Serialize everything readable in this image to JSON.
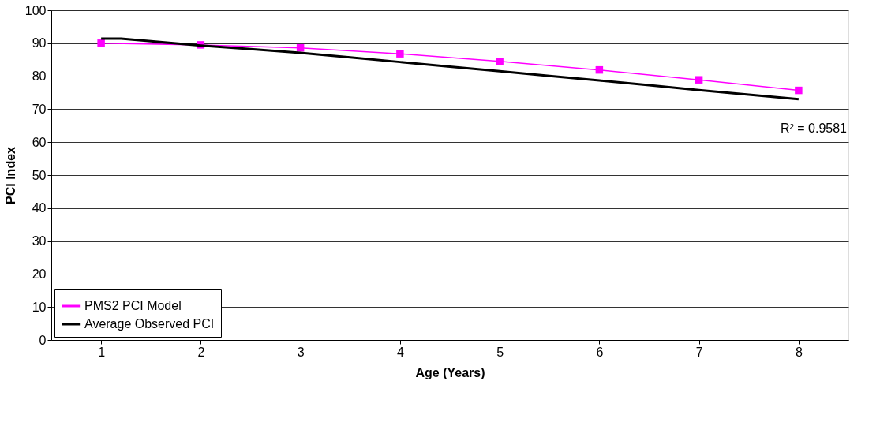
{
  "chart_data": {
    "type": "line",
    "xlabel": "Age (Years)",
    "ylabel": "PCI Index",
    "x": [
      1,
      2,
      3,
      4,
      5,
      6,
      7,
      8
    ],
    "series": [
      {
        "name": "PMS2 PCI Model",
        "color": "#ff00ff",
        "marker": "square",
        "values": [
          90,
          89.5,
          88.6,
          86.8,
          84.5,
          81.9,
          78.9,
          75.7
        ]
      },
      {
        "name": "Average Observed PCI",
        "color": "#000000",
        "marker": "none",
        "x": [
          1,
          1.2,
          1.5,
          2,
          2.5,
          3,
          3.5,
          4,
          4.5,
          5,
          5.5,
          6,
          6.5,
          7,
          7.5,
          8
        ],
        "values": [
          91.4,
          91.4,
          90.6,
          89.3,
          88.2,
          87.1,
          85.7,
          84.3,
          82.9,
          81.5,
          80.1,
          78.7,
          77.3,
          75.8,
          74.4,
          73.0
        ]
      }
    ],
    "xlim": [
      0.5,
      8.5
    ],
    "xticks": [
      1,
      2,
      3,
      4,
      5,
      6,
      7,
      8
    ],
    "ylim": [
      0,
      100
    ],
    "yticks": [
      0,
      10,
      20,
      30,
      40,
      50,
      60,
      70,
      80,
      90,
      100
    ],
    "grid": "y",
    "legend": "bottom left",
    "line_style": "solid",
    "annotations": [
      "R² = 0.9581"
    ]
  }
}
